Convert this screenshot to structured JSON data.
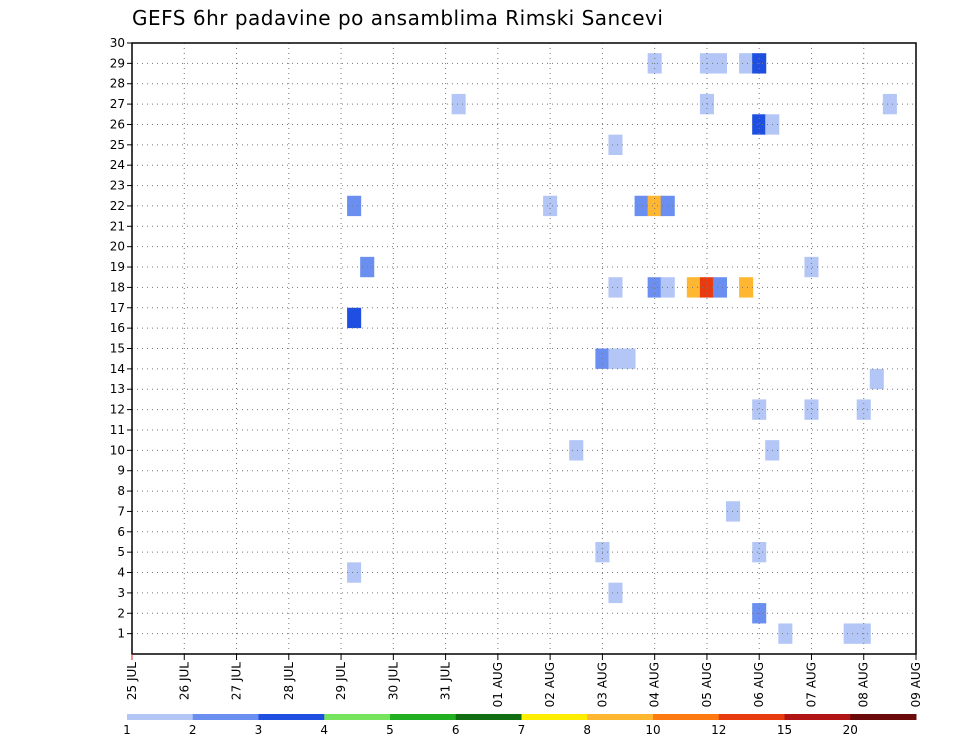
{
  "title": "GEFS 6hr padavine po ansamblima Rimski Sancevi",
  "chart_data": {
    "type": "heatmap",
    "title": "GEFS 6hr padavine po ansamblima Rimski Sancevi",
    "xlabel": "",
    "ylabel": "",
    "x_ticks": [
      "25 JUL",
      "26 JUL",
      "27 JUL",
      "28 JUL",
      "29 JUL",
      "30 JUL",
      "31 JUL",
      "01 AUG",
      "02 AUG",
      "03 AUG",
      "04 AUG",
      "05 AUG",
      "06 AUG",
      "07 AUG",
      "08 AUG",
      "09 AUG"
    ],
    "xlim": [
      0,
      15
    ],
    "y_ticks": [
      "1",
      "2",
      "3",
      "4",
      "5",
      "6",
      "7",
      "8",
      "9",
      "10",
      "11",
      "12",
      "13",
      "14",
      "15",
      "16",
      "17",
      "18",
      "19",
      "20",
      "21",
      "22",
      "23",
      "24",
      "25",
      "26",
      "27",
      "28",
      "29",
      "30"
    ],
    "ylim": [
      0,
      30
    ],
    "grid": true,
    "colorbar": {
      "labels": [
        "1",
        "2",
        "3",
        "4",
        "5",
        "6",
        "7",
        "8",
        "10",
        "12",
        "15",
        "20"
      ],
      "colors": [
        "#b3c6f5",
        "#6a8ff0",
        "#1f4fe0",
        "#77e45e",
        "#22b022",
        "#126e12",
        "#ffee00",
        "#ffb732",
        "#ff7a10",
        "#e83c10",
        "#b01414",
        "#6a0a0a"
      ]
    },
    "cells": [
      {
        "x": 10.0,
        "y": 29,
        "level": 1
      },
      {
        "x": 11.0,
        "y": 29,
        "level": 1
      },
      {
        "x": 11.25,
        "y": 29,
        "level": 1
      },
      {
        "x": 11.75,
        "y": 29,
        "level": 1
      },
      {
        "x": 12.0,
        "y": 29,
        "level": 3
      },
      {
        "x": 6.25,
        "y": 27,
        "level": 1
      },
      {
        "x": 11.0,
        "y": 27,
        "level": 1
      },
      {
        "x": 14.5,
        "y": 27,
        "level": 1
      },
      {
        "x": 12.0,
        "y": 26,
        "level": 3
      },
      {
        "x": 12.25,
        "y": 26,
        "level": 1
      },
      {
        "x": 9.25,
        "y": 25,
        "level": 1
      },
      {
        "x": 4.25,
        "y": 22,
        "level": 2
      },
      {
        "x": 8.0,
        "y": 22,
        "level": 1
      },
      {
        "x": 9.75,
        "y": 22,
        "level": 2
      },
      {
        "x": 10.0,
        "y": 22,
        "level": 8
      },
      {
        "x": 10.25,
        "y": 22,
        "level": 2
      },
      {
        "x": 4.5,
        "y": 19,
        "level": 2
      },
      {
        "x": 13.0,
        "y": 19,
        "level": 1
      },
      {
        "x": 9.25,
        "y": 18,
        "level": 1
      },
      {
        "x": 10.0,
        "y": 18,
        "level": 2
      },
      {
        "x": 10.25,
        "y": 18,
        "level": 1
      },
      {
        "x": 10.75,
        "y": 18,
        "level": 8
      },
      {
        "x": 11.0,
        "y": 18,
        "level": 10
      },
      {
        "x": 11.25,
        "y": 18,
        "level": 2
      },
      {
        "x": 11.75,
        "y": 18,
        "level": 8
      },
      {
        "x": 4.25,
        "y": 16.5,
        "level": 3
      },
      {
        "x": 9.0,
        "y": 14.5,
        "level": 2
      },
      {
        "x": 9.25,
        "y": 14.5,
        "level": 1
      },
      {
        "x": 9.5,
        "y": 14.5,
        "level": 1
      },
      {
        "x": 14.25,
        "y": 13.5,
        "level": 1
      },
      {
        "x": 12.0,
        "y": 12,
        "level": 1
      },
      {
        "x": 13.0,
        "y": 12,
        "level": 1
      },
      {
        "x": 14.0,
        "y": 12,
        "level": 1
      },
      {
        "x": 8.5,
        "y": 10,
        "level": 1
      },
      {
        "x": 12.25,
        "y": 10,
        "level": 1
      },
      {
        "x": 11.5,
        "y": 7,
        "level": 1
      },
      {
        "x": 9.0,
        "y": 5,
        "level": 1
      },
      {
        "x": 12.0,
        "y": 5,
        "level": 1
      },
      {
        "x": 4.25,
        "y": 4,
        "level": 1
      },
      {
        "x": 9.25,
        "y": 3,
        "level": 1
      },
      {
        "x": 12.0,
        "y": 2,
        "level": 2
      },
      {
        "x": 12.5,
        "y": 1,
        "level": 1
      },
      {
        "x": 13.75,
        "y": 1,
        "level": 1
      },
      {
        "x": 14.0,
        "y": 1,
        "level": 1
      }
    ]
  }
}
